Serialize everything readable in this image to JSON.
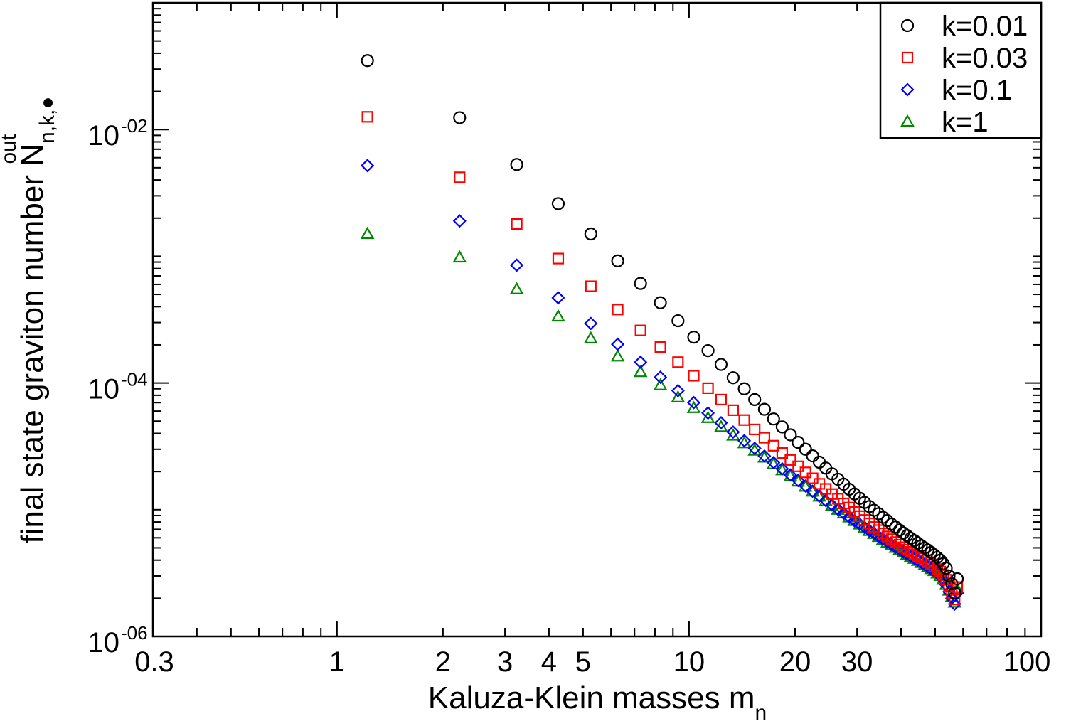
{
  "chart_data": {
    "type": "scatter",
    "x_scale": "log",
    "y_scale": "log",
    "xlim": [
      0.3,
      100
    ],
    "ylim": [
      1e-06,
      0.1
    ],
    "grid": false,
    "legend_position": "top-right",
    "xlabel": {
      "main": "Kaluza-Klein masses m",
      "sub": "n"
    },
    "ylabel": {
      "main": "final state graviton number N",
      "sub": "n,k,●",
      "sup": "out"
    },
    "x_tick_labels": [
      {
        "value": 0.3,
        "text": "0.3"
      },
      {
        "value": 1,
        "text": "1"
      },
      {
        "value": 2,
        "text": "2"
      },
      {
        "value": 3,
        "text": "3"
      },
      {
        "value": 4,
        "text": "4"
      },
      {
        "value": 5,
        "text": "5"
      },
      {
        "value": 10,
        "text": "10"
      },
      {
        "value": 20,
        "text": "20"
      },
      {
        "value": 30,
        "text": "30"
      },
      {
        "value": 100,
        "text": "100"
      }
    ],
    "y_tick_labels": [
      {
        "value": 1e-06,
        "base": "10",
        "exp": "-06"
      },
      {
        "value": 0.0001,
        "base": "10",
        "exp": "-04"
      },
      {
        "value": 0.01,
        "base": "10",
        "exp": "-02"
      }
    ],
    "series": [
      {
        "name": "k=0.01",
        "marker": "circle",
        "color": "#000000",
        "x": [
          1.22,
          2.23,
          3.24,
          4.25,
          5.26,
          6.27,
          7.28,
          8.29,
          9.3,
          10.31,
          11.32,
          12.33,
          13.34,
          14.35,
          15.36,
          16.37,
          17.38,
          18.39,
          19.4,
          20.41,
          21.42,
          22.43,
          23.44,
          24.45,
          25.46,
          26.47,
          27.48,
          28.49,
          29.5,
          30.51,
          31.52,
          32.53,
          33.54,
          34.55,
          35.56,
          36.57,
          37.58,
          38.59,
          39.6,
          40.61,
          41.62,
          42.63,
          43.64,
          44.65,
          45.66,
          46.67,
          47.68,
          48.69,
          49.7,
          50.71,
          51.72,
          52.73,
          53.74,
          54.75,
          55.76,
          56.77,
          57.78
        ],
        "y": [
          0.035,
          0.0124,
          0.0053,
          0.0026,
          0.0015,
          0.00092,
          0.00061,
          0.00043,
          0.00031,
          0.00023,
          0.00018,
          0.00014,
          0.00011,
          9e-05,
          7.4e-05,
          6.2e-05,
          5.2e-05,
          4.5e-05,
          3.9e-05,
          3.4e-05,
          3e-05,
          2.66e-05,
          2.37e-05,
          2.13e-05,
          1.92e-05,
          1.74e-05,
          1.59e-05,
          1.45e-05,
          1.33e-05,
          1.23e-05,
          1.14e-05,
          1.06e-05,
          9.9e-06,
          9.3e-06,
          8.7e-06,
          8.2e-06,
          7.7e-06,
          7.3e-06,
          6.9e-06,
          6.55e-06,
          6.25e-06,
          5.95e-06,
          5.7e-06,
          5.45e-06,
          5.2e-06,
          5e-06,
          4.8e-06,
          4.6e-06,
          4.4e-06,
          4.2e-06,
          4e-06,
          3.75e-06,
          3.45e-06,
          3e-06,
          2.6e-06,
          2.2e-06,
          2.85e-06
        ]
      },
      {
        "name": "k=0.03",
        "marker": "square",
        "color": "#ff0000",
        "x": [
          1.22,
          2.23,
          3.24,
          4.25,
          5.26,
          6.27,
          7.28,
          8.29,
          9.3,
          10.31,
          11.32,
          12.33,
          13.34,
          14.35,
          15.36,
          16.37,
          17.38,
          18.39,
          19.4,
          20.41,
          21.42,
          22.43,
          23.44,
          24.45,
          25.46,
          26.47,
          27.48,
          28.49,
          29.5,
          30.51,
          31.52,
          32.53,
          33.54,
          34.55,
          35.56,
          36.57,
          37.58,
          38.59,
          39.6,
          40.61,
          41.62,
          42.63,
          43.64,
          44.65,
          45.66,
          46.67,
          47.68,
          48.69,
          49.7,
          50.71,
          51.72,
          52.73,
          53.74,
          54.75,
          55.76,
          56.77,
          57.78
        ],
        "y": [
          0.0126,
          0.0042,
          0.0018,
          0.00096,
          0.00058,
          0.00038,
          0.00026,
          0.000192,
          0.000146,
          0.000114,
          9.1e-05,
          7.4e-05,
          6.1e-05,
          5.1e-05,
          4.3e-05,
          3.7e-05,
          3.2e-05,
          2.8e-05,
          2.47e-05,
          2.2e-05,
          1.97e-05,
          1.77e-05,
          1.6e-05,
          1.46e-05,
          1.33e-05,
          1.22e-05,
          1.12e-05,
          1.04e-05,
          9.6e-06,
          8.9e-06,
          8.3e-06,
          7.8e-06,
          7.3e-06,
          6.9e-06,
          6.5e-06,
          6.15e-06,
          5.85e-06,
          5.55e-06,
          5.3e-06,
          5.05e-06,
          4.85e-06,
          4.65e-06,
          4.45e-06,
          4.3e-06,
          4.15e-06,
          4e-06,
          3.85e-06,
          3.7e-06,
          3.55e-06,
          3.4e-06,
          3.25e-06,
          3.05e-06,
          2.8e-06,
          2.5e-06,
          2.2e-06,
          1.95e-06,
          2.45e-06
        ]
      },
      {
        "name": "k=0.1",
        "marker": "diamond",
        "color": "#0000ff",
        "x": [
          1.22,
          2.23,
          3.24,
          4.25,
          5.26,
          6.27,
          7.28,
          8.29,
          9.3,
          10.31,
          11.32,
          12.33,
          13.34,
          14.35,
          15.36,
          16.37,
          17.38,
          18.39,
          19.4,
          20.41,
          21.42,
          22.43,
          23.44,
          24.45,
          25.46,
          26.47,
          27.48,
          28.49,
          29.5,
          30.51,
          31.52,
          32.53,
          33.54,
          34.55,
          35.56,
          36.57,
          37.58,
          38.59,
          39.6,
          40.61,
          41.62,
          42.63,
          43.64,
          44.65,
          45.66,
          46.67,
          47.68,
          48.69,
          49.7,
          50.71,
          51.72,
          52.73,
          53.74,
          54.75,
          55.76,
          56.77,
          57.78
        ],
        "y": [
          0.0052,
          0.0019,
          0.00085,
          0.00047,
          0.000295,
          0.000202,
          0.000146,
          0.000111,
          8.7e-05,
          7e-05,
          5.8e-05,
          4.85e-05,
          4.1e-05,
          3.5e-05,
          3.05e-05,
          2.65e-05,
          2.35e-05,
          2.1e-05,
          1.88e-05,
          1.7e-05,
          1.54e-05,
          1.4e-05,
          1.28e-05,
          1.18e-05,
          1.09e-05,
          1.01e-05,
          9.4e-06,
          8.75e-06,
          8.2e-06,
          7.7e-06,
          7.25e-06,
          6.85e-06,
          6.5e-06,
          6.15e-06,
          5.85e-06,
          5.55e-06,
          5.3e-06,
          5.05e-06,
          4.85e-06,
          4.65e-06,
          4.45e-06,
          4.3e-06,
          4.15e-06,
          4e-06,
          3.85e-06,
          3.7e-06,
          3.55e-06,
          3.42e-06,
          3.3e-06,
          3.15e-06,
          3e-06,
          2.8e-06,
          2.55e-06,
          2.25e-06,
          2e-06,
          1.8e-06,
          2.2e-06
        ]
      },
      {
        "name": "k=1",
        "marker": "triangle",
        "color": "#008800",
        "x": [
          1.22,
          2.23,
          3.24,
          4.25,
          5.26,
          6.27,
          7.28,
          8.29,
          9.3,
          10.31,
          11.32,
          12.33,
          13.34,
          14.35,
          15.36,
          16.37,
          17.38,
          18.39,
          19.4,
          20.41,
          21.42,
          22.43,
          23.44,
          24.45,
          25.46,
          26.47,
          27.48,
          28.49,
          29.5,
          30.51,
          31.52,
          32.53,
          33.54,
          34.55,
          35.56,
          36.57,
          37.58,
          38.59,
          39.6,
          40.61,
          41.62,
          42.63,
          43.64,
          44.65,
          45.66,
          46.67,
          47.68,
          48.69,
          49.7,
          50.71,
          51.72,
          52.73,
          53.74,
          54.75,
          55.76,
          56.77,
          57.78
        ],
        "y": [
          0.0015,
          0.00098,
          0.00055,
          0.000335,
          0.000225,
          0.000162,
          0.000122,
          9.6e-05,
          7.7e-05,
          6.35e-05,
          5.3e-05,
          4.5e-05,
          3.85e-05,
          3.35e-05,
          2.93e-05,
          2.58e-05,
          2.29e-05,
          2.05e-05,
          1.84e-05,
          1.67e-05,
          1.52e-05,
          1.39e-05,
          1.27e-05,
          1.17e-05,
          1.08e-05,
          1e-05,
          9.35e-06,
          8.7e-06,
          8.15e-06,
          7.65e-06,
          7.2e-06,
          6.8e-06,
          6.45e-06,
          6.1e-06,
          5.8e-06,
          5.5e-06,
          5.25e-06,
          5e-06,
          4.8e-06,
          4.6e-06,
          4.42e-06,
          4.25e-06,
          4.1e-06,
          3.95e-06,
          3.8e-06,
          3.66e-06,
          3.52e-06,
          3.4e-06,
          3.28e-06,
          3.14e-06,
          3e-06,
          2.8e-06,
          2.55e-06,
          2.3e-06,
          2.05e-06,
          1.85e-06,
          2.35e-06
        ]
      }
    ]
  }
}
